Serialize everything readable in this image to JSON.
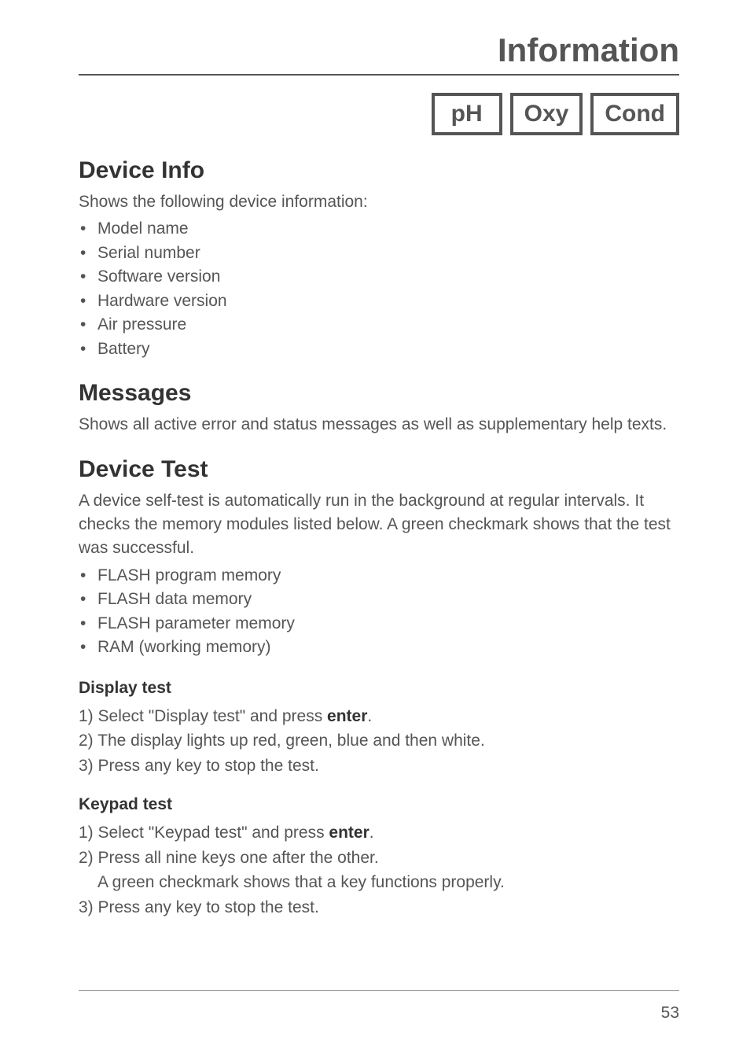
{
  "pageTitle": "Information",
  "tags": {
    "t1": "pH",
    "t2": "Oxy",
    "t3": "Cond"
  },
  "deviceInfo": {
    "heading": "Device Info",
    "intro": "Shows the following device information:",
    "items": {
      "i0": "Model name",
      "i1": "Serial number",
      "i2": "Software version",
      "i3": "Hardware version",
      "i4": "Air pressure",
      "i5": "Battery"
    }
  },
  "messages": {
    "heading": "Messages",
    "text": "Shows all active error and status messages as well as supplementary help texts."
  },
  "deviceTest": {
    "heading": "Device Test",
    "intro": "A device self-test is automatically run in the background at regular intervals. It checks the memory modules listed below. A green checkmark shows that the test was successful.",
    "items": {
      "i0": "FLASH program memory",
      "i1": "FLASH data memory",
      "i2": "FLASH parameter memory",
      "i3": "RAM (working memory)"
    }
  },
  "displayTest": {
    "heading": "Display test",
    "l1a": "1) Select \"Display test\" and press ",
    "l1b": "enter",
    "l1c": ".",
    "l2": "2) The display lights up red, green, blue and then white.",
    "l3": "3) Press any key to stop the test."
  },
  "keypadTest": {
    "heading": "Keypad test",
    "l1a": "1) Select \"Keypad test\" and press ",
    "l1b": "enter",
    "l1c": ".",
    "l2": "2) Press all nine keys one after the other.",
    "l2b": "A green checkmark shows that a key functions properly.",
    "l3": "3) Press any key to stop the test."
  },
  "pageNumber": "53"
}
